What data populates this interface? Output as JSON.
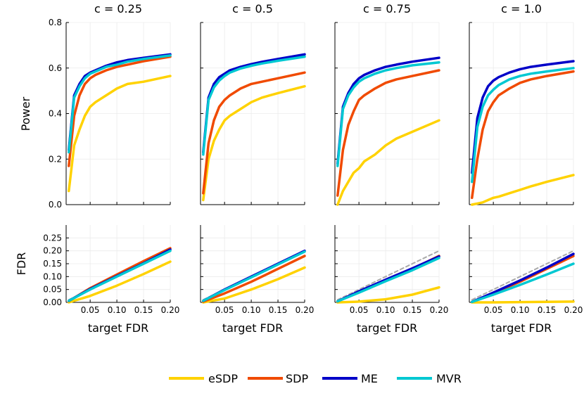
{
  "figure": {
    "ylabels": {
      "power": "Power",
      "fdr": "FDR"
    },
    "xlabel": "target FDR"
  },
  "legend": [
    {
      "name": "eSDP",
      "color": "#FFD200"
    },
    {
      "name": "SDP",
      "color": "#F04A00"
    },
    {
      "name": "ME",
      "color": "#0000C8"
    },
    {
      "name": "MVR",
      "color": "#00C8D2"
    }
  ],
  "chart_data": [
    {
      "type": "line",
      "title": "c = 0.25",
      "row": "power",
      "xlabel": "",
      "ylabel": "Power",
      "xlim": [
        0.005,
        0.2
      ],
      "ylim": [
        0,
        0.8
      ],
      "yticks": [
        "0.0",
        "0.2",
        "0.4",
        "0.6",
        "0.8"
      ],
      "x": [
        0.01,
        0.02,
        0.03,
        0.04,
        0.05,
        0.06,
        0.08,
        0.1,
        0.12,
        0.15,
        0.2
      ],
      "series": [
        {
          "name": "eSDP",
          "values": [
            0.06,
            0.26,
            0.33,
            0.39,
            0.43,
            0.45,
            0.48,
            0.51,
            0.53,
            0.54,
            0.565
          ]
        },
        {
          "name": "SDP",
          "values": [
            0.17,
            0.39,
            0.48,
            0.53,
            0.555,
            0.57,
            0.59,
            0.605,
            0.615,
            0.63,
            0.65
          ]
        },
        {
          "name": "ME",
          "values": [
            0.24,
            0.48,
            0.53,
            0.565,
            0.58,
            0.59,
            0.61,
            0.625,
            0.635,
            0.645,
            0.66
          ]
        },
        {
          "name": "MVR",
          "values": [
            0.23,
            0.47,
            0.52,
            0.555,
            0.575,
            0.585,
            0.605,
            0.615,
            0.628,
            0.64,
            0.655
          ]
        }
      ]
    },
    {
      "type": "line",
      "title": "c = 0.5",
      "row": "power",
      "xlim": [
        0.005,
        0.2
      ],
      "ylim": [
        0,
        0.8
      ],
      "x": [
        0.01,
        0.02,
        0.03,
        0.04,
        0.05,
        0.06,
        0.08,
        0.1,
        0.12,
        0.15,
        0.2
      ],
      "series": [
        {
          "name": "eSDP",
          "values": [
            0.02,
            0.2,
            0.28,
            0.33,
            0.37,
            0.39,
            0.42,
            0.45,
            0.47,
            0.49,
            0.52
          ]
        },
        {
          "name": "SDP",
          "values": [
            0.05,
            0.27,
            0.37,
            0.43,
            0.46,
            0.48,
            0.51,
            0.53,
            0.54,
            0.555,
            0.58
          ]
        },
        {
          "name": "ME",
          "values": [
            0.23,
            0.47,
            0.53,
            0.56,
            0.575,
            0.59,
            0.605,
            0.617,
            0.627,
            0.64,
            0.66
          ]
        },
        {
          "name": "MVR",
          "values": [
            0.22,
            0.46,
            0.515,
            0.545,
            0.565,
            0.58,
            0.598,
            0.61,
            0.62,
            0.632,
            0.65
          ]
        }
      ]
    },
    {
      "type": "line",
      "title": "c = 0.75",
      "row": "power",
      "xlim": [
        0.005,
        0.2
      ],
      "ylim": [
        0,
        0.8
      ],
      "x": [
        0.01,
        0.02,
        0.03,
        0.04,
        0.05,
        0.06,
        0.08,
        0.1,
        0.12,
        0.15,
        0.2
      ],
      "series": [
        {
          "name": "eSDP",
          "values": [
            0.0,
            0.06,
            0.1,
            0.14,
            0.16,
            0.19,
            0.22,
            0.26,
            0.29,
            0.32,
            0.37
          ]
        },
        {
          "name": "SDP",
          "values": [
            0.04,
            0.24,
            0.35,
            0.41,
            0.46,
            0.48,
            0.51,
            0.535,
            0.55,
            0.565,
            0.59
          ]
        },
        {
          "name": "ME",
          "values": [
            0.18,
            0.43,
            0.49,
            0.53,
            0.555,
            0.57,
            0.59,
            0.605,
            0.615,
            0.628,
            0.645
          ]
        },
        {
          "name": "MVR",
          "values": [
            0.17,
            0.42,
            0.48,
            0.515,
            0.54,
            0.555,
            0.575,
            0.59,
            0.6,
            0.612,
            0.625
          ]
        }
      ]
    },
    {
      "type": "line",
      "title": "c = 1.0",
      "row": "power",
      "xlim": [
        0.005,
        0.2
      ],
      "ylim": [
        0,
        0.8
      ],
      "x": [
        0.01,
        0.02,
        0.03,
        0.04,
        0.05,
        0.06,
        0.08,
        0.1,
        0.12,
        0.15,
        0.2
      ],
      "series": [
        {
          "name": "eSDP",
          "values": [
            0.0,
            0.005,
            0.01,
            0.02,
            0.03,
            0.035,
            0.05,
            0.065,
            0.08,
            0.1,
            0.13
          ]
        },
        {
          "name": "SDP",
          "values": [
            0.03,
            0.2,
            0.33,
            0.41,
            0.45,
            0.48,
            0.51,
            0.535,
            0.55,
            0.565,
            0.585
          ]
        },
        {
          "name": "ME",
          "values": [
            0.14,
            0.38,
            0.47,
            0.52,
            0.545,
            0.56,
            0.58,
            0.595,
            0.605,
            0.615,
            0.63
          ]
        },
        {
          "name": "MVR",
          "values": [
            0.1,
            0.34,
            0.43,
            0.48,
            0.505,
            0.525,
            0.55,
            0.565,
            0.575,
            0.585,
            0.6
          ]
        }
      ]
    },
    {
      "type": "line",
      "title": "",
      "row": "fdr",
      "xlabel": "target FDR",
      "ylabel": "FDR",
      "xlim": [
        0.005,
        0.2
      ],
      "ylim": [
        0,
        0.3
      ],
      "xticks": [
        "0.05",
        "0.10",
        "0.15",
        "0.20"
      ],
      "yticks": [
        "0.00",
        "0.05",
        "0.10",
        "0.15",
        "0.20",
        "0.25"
      ],
      "x": [
        0.01,
        0.05,
        0.1,
        0.15,
        0.2
      ],
      "series": [
        {
          "name": "eSDP",
          "values": [
            0.0,
            0.025,
            0.065,
            0.11,
            0.158
          ]
        },
        {
          "name": "SDP",
          "values": [
            0.005,
            0.055,
            0.108,
            0.16,
            0.21
          ]
        },
        {
          "name": "ME",
          "values": [
            0.006,
            0.052,
            0.102,
            0.152,
            0.205
          ]
        },
        {
          "name": "MVR",
          "values": [
            0.006,
            0.05,
            0.1,
            0.15,
            0.2
          ]
        },
        {
          "name": "reference",
          "values": [
            0.01,
            0.05,
            0.1,
            0.15,
            0.2
          ]
        }
      ]
    },
    {
      "type": "line",
      "title": "",
      "row": "fdr",
      "xlabel": "target FDR",
      "xlim": [
        0.005,
        0.2
      ],
      "ylim": [
        0,
        0.3
      ],
      "x": [
        0.01,
        0.05,
        0.1,
        0.15,
        0.2
      ],
      "series": [
        {
          "name": "eSDP",
          "values": [
            0.0,
            0.015,
            0.05,
            0.09,
            0.135
          ]
        },
        {
          "name": "SDP",
          "values": [
            0.003,
            0.035,
            0.08,
            0.13,
            0.18
          ]
        },
        {
          "name": "ME",
          "values": [
            0.006,
            0.05,
            0.1,
            0.15,
            0.2
          ]
        },
        {
          "name": "MVR",
          "values": [
            0.006,
            0.048,
            0.097,
            0.147,
            0.197
          ]
        },
        {
          "name": "reference",
          "values": [
            0.01,
            0.05,
            0.1,
            0.15,
            0.2
          ]
        }
      ]
    },
    {
      "type": "line",
      "title": "",
      "row": "fdr",
      "xlabel": "target FDR",
      "xlim": [
        0.005,
        0.2
      ],
      "ylim": [
        0,
        0.3
      ],
      "x": [
        0.01,
        0.05,
        0.1,
        0.15,
        0.2
      ],
      "series": [
        {
          "name": "eSDP",
          "values": [
            0.0,
            0.003,
            0.012,
            0.03,
            0.058
          ]
        },
        {
          "name": "SDP",
          "values": [
            0.004,
            0.04,
            0.085,
            0.13,
            0.18
          ]
        },
        {
          "name": "ME",
          "values": [
            0.004,
            0.043,
            0.088,
            0.132,
            0.178
          ]
        },
        {
          "name": "MVR",
          "values": [
            0.004,
            0.038,
            0.082,
            0.125,
            0.172
          ]
        },
        {
          "name": "reference",
          "values": [
            0.01,
            0.05,
            0.1,
            0.15,
            0.2
          ]
        }
      ]
    },
    {
      "type": "line",
      "title": "",
      "row": "fdr",
      "xlabel": "target FDR",
      "xlim": [
        0.005,
        0.2
      ],
      "ylim": [
        0,
        0.3
      ],
      "x": [
        0.01,
        0.05,
        0.1,
        0.15,
        0.2
      ],
      "series": [
        {
          "name": "eSDP",
          "values": [
            0.0,
            0.0,
            0.001,
            0.002,
            0.003
          ]
        },
        {
          "name": "SDP",
          "values": [
            0.002,
            0.035,
            0.08,
            0.13,
            0.18
          ]
        },
        {
          "name": "ME",
          "values": [
            0.002,
            0.038,
            0.085,
            0.135,
            0.188
          ]
        },
        {
          "name": "MVR",
          "values": [
            0.002,
            0.03,
            0.068,
            0.108,
            0.15
          ]
        },
        {
          "name": "reference",
          "values": [
            0.01,
            0.05,
            0.1,
            0.15,
            0.2
          ]
        }
      ]
    }
  ]
}
